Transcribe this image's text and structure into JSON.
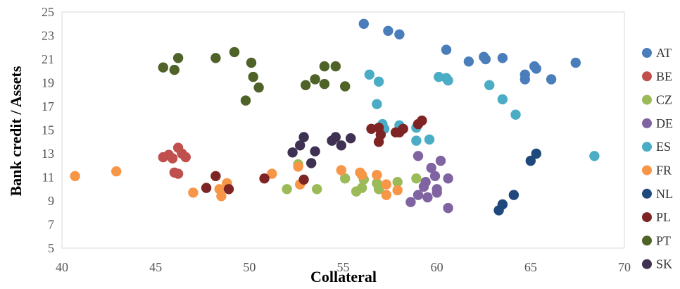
{
  "chart_data": {
    "type": "scatter",
    "title": "",
    "xlabel": "Collateral",
    "ylabel": "Bank credit / Assets",
    "xlim": [
      40,
      70
    ],
    "ylim": [
      5,
      25
    ],
    "xticks": [
      40,
      45,
      50,
      55,
      60,
      65,
      70
    ],
    "yticks": [
      5,
      7,
      9,
      11,
      13,
      15,
      17,
      19,
      21,
      23,
      25
    ],
    "grid": "none",
    "legend_position": "right",
    "series": [
      {
        "name": "AT",
        "color": "#4A7EBB",
        "points": [
          [
            56.1,
            24.0
          ],
          [
            57.4,
            23.4
          ],
          [
            58.0,
            23.1
          ],
          [
            60.5,
            21.8
          ],
          [
            61.7,
            20.8
          ],
          [
            62.5,
            21.2
          ],
          [
            62.6,
            21.0
          ],
          [
            63.5,
            21.1
          ],
          [
            64.7,
            19.7
          ],
          [
            64.7,
            19.3
          ],
          [
            65.2,
            20.4
          ],
          [
            65.3,
            20.2
          ],
          [
            66.1,
            19.3
          ],
          [
            67.4,
            20.7
          ]
        ]
      },
      {
        "name": "BE",
        "color": "#C0504D",
        "points": [
          [
            45.4,
            12.7
          ],
          [
            45.7,
            12.9
          ],
          [
            45.9,
            12.6
          ],
          [
            46.0,
            11.4
          ],
          [
            46.2,
            11.3
          ],
          [
            46.2,
            13.5
          ],
          [
            46.4,
            13.0
          ],
          [
            46.6,
            12.7
          ]
        ]
      },
      {
        "name": "CZ",
        "color": "#9BBB59",
        "points": [
          [
            52.0,
            10.0
          ],
          [
            52.6,
            12.1
          ],
          [
            53.6,
            10.0
          ],
          [
            55.1,
            10.9
          ],
          [
            55.7,
            9.8
          ],
          [
            56.0,
            10.1
          ],
          [
            56.1,
            10.8
          ],
          [
            56.8,
            10.5
          ],
          [
            56.9,
            10.0
          ],
          [
            57.9,
            10.6
          ],
          [
            58.9,
            10.9
          ]
        ]
      },
      {
        "name": "DE",
        "color": "#8064A2",
        "points": [
          [
            58.6,
            8.9
          ],
          [
            59.0,
            12.8
          ],
          [
            59.0,
            9.5
          ],
          [
            59.3,
            10.2
          ],
          [
            59.4,
            10.6
          ],
          [
            59.5,
            9.3
          ],
          [
            59.7,
            11.8
          ],
          [
            59.9,
            11.1
          ],
          [
            60.0,
            10.0
          ],
          [
            60.0,
            9.7
          ],
          [
            60.2,
            12.4
          ],
          [
            60.6,
            10.9
          ],
          [
            60.6,
            8.4
          ]
        ]
      },
      {
        "name": "ES",
        "color": "#4BACC6",
        "points": [
          [
            56.4,
            19.7
          ],
          [
            56.8,
            17.2
          ],
          [
            56.9,
            19.1
          ],
          [
            57.1,
            15.5
          ],
          [
            57.2,
            15.1
          ],
          [
            58.0,
            15.4
          ],
          [
            58.9,
            15.2
          ],
          [
            58.9,
            14.1
          ],
          [
            59.6,
            14.2
          ],
          [
            60.1,
            19.5
          ],
          [
            60.5,
            19.4
          ],
          [
            60.6,
            19.2
          ],
          [
            62.8,
            18.8
          ],
          [
            63.5,
            17.6
          ],
          [
            64.2,
            16.3
          ],
          [
            68.4,
            12.8
          ]
        ]
      },
      {
        "name": "FR",
        "color": "#F79646",
        "points": [
          [
            40.7,
            11.1
          ],
          [
            42.9,
            11.5
          ],
          [
            47.0,
            9.7
          ],
          [
            48.4,
            10.0
          ],
          [
            48.5,
            9.4
          ],
          [
            48.8,
            10.5
          ],
          [
            51.2,
            11.3
          ],
          [
            52.6,
            11.9
          ],
          [
            52.7,
            10.4
          ],
          [
            54.9,
            11.6
          ],
          [
            55.9,
            11.4
          ],
          [
            56.0,
            11.2
          ],
          [
            56.8,
            11.2
          ],
          [
            57.3,
            10.4
          ],
          [
            57.3,
            9.5
          ],
          [
            57.9,
            9.9
          ]
        ]
      },
      {
        "name": "NL",
        "color": "#1F497D",
        "points": [
          [
            63.3,
            8.2
          ],
          [
            63.5,
            8.7
          ],
          [
            64.1,
            9.5
          ],
          [
            65.0,
            12.4
          ],
          [
            65.3,
            13.0
          ]
        ]
      },
      {
        "name": "PL",
        "color": "#7F2424",
        "points": [
          [
            47.7,
            10.1
          ],
          [
            48.2,
            11.1
          ],
          [
            48.9,
            10.0
          ],
          [
            50.8,
            10.9
          ],
          [
            52.9,
            10.8
          ],
          [
            56.5,
            15.1
          ],
          [
            56.9,
            15.2
          ],
          [
            56.9,
            14.0
          ],
          [
            57.0,
            14.6
          ],
          [
            57.8,
            14.8
          ],
          [
            58.0,
            14.8
          ],
          [
            58.2,
            15.1
          ],
          [
            59.0,
            15.5
          ],
          [
            59.2,
            15.8
          ]
        ]
      },
      {
        "name": "PT",
        "color": "#4F6228",
        "points": [
          [
            45.4,
            20.3
          ],
          [
            46.0,
            20.1
          ],
          [
            46.2,
            21.1
          ],
          [
            48.2,
            21.1
          ],
          [
            49.2,
            21.6
          ],
          [
            49.8,
            17.5
          ],
          [
            50.1,
            20.7
          ],
          [
            50.2,
            19.5
          ],
          [
            50.5,
            18.6
          ],
          [
            53.0,
            18.8
          ],
          [
            53.5,
            19.3
          ],
          [
            54.0,
            18.9
          ],
          [
            54.0,
            20.4
          ],
          [
            54.6,
            20.4
          ],
          [
            55.1,
            18.7
          ]
        ]
      },
      {
        "name": "SK",
        "color": "#3F3151",
        "points": [
          [
            52.3,
            13.1
          ],
          [
            52.7,
            13.7
          ],
          [
            52.9,
            14.4
          ],
          [
            53.3,
            12.2
          ],
          [
            53.5,
            13.2
          ],
          [
            54.4,
            14.1
          ],
          [
            54.6,
            14.4
          ],
          [
            54.9,
            13.7
          ],
          [
            55.4,
            14.3
          ]
        ]
      }
    ]
  }
}
